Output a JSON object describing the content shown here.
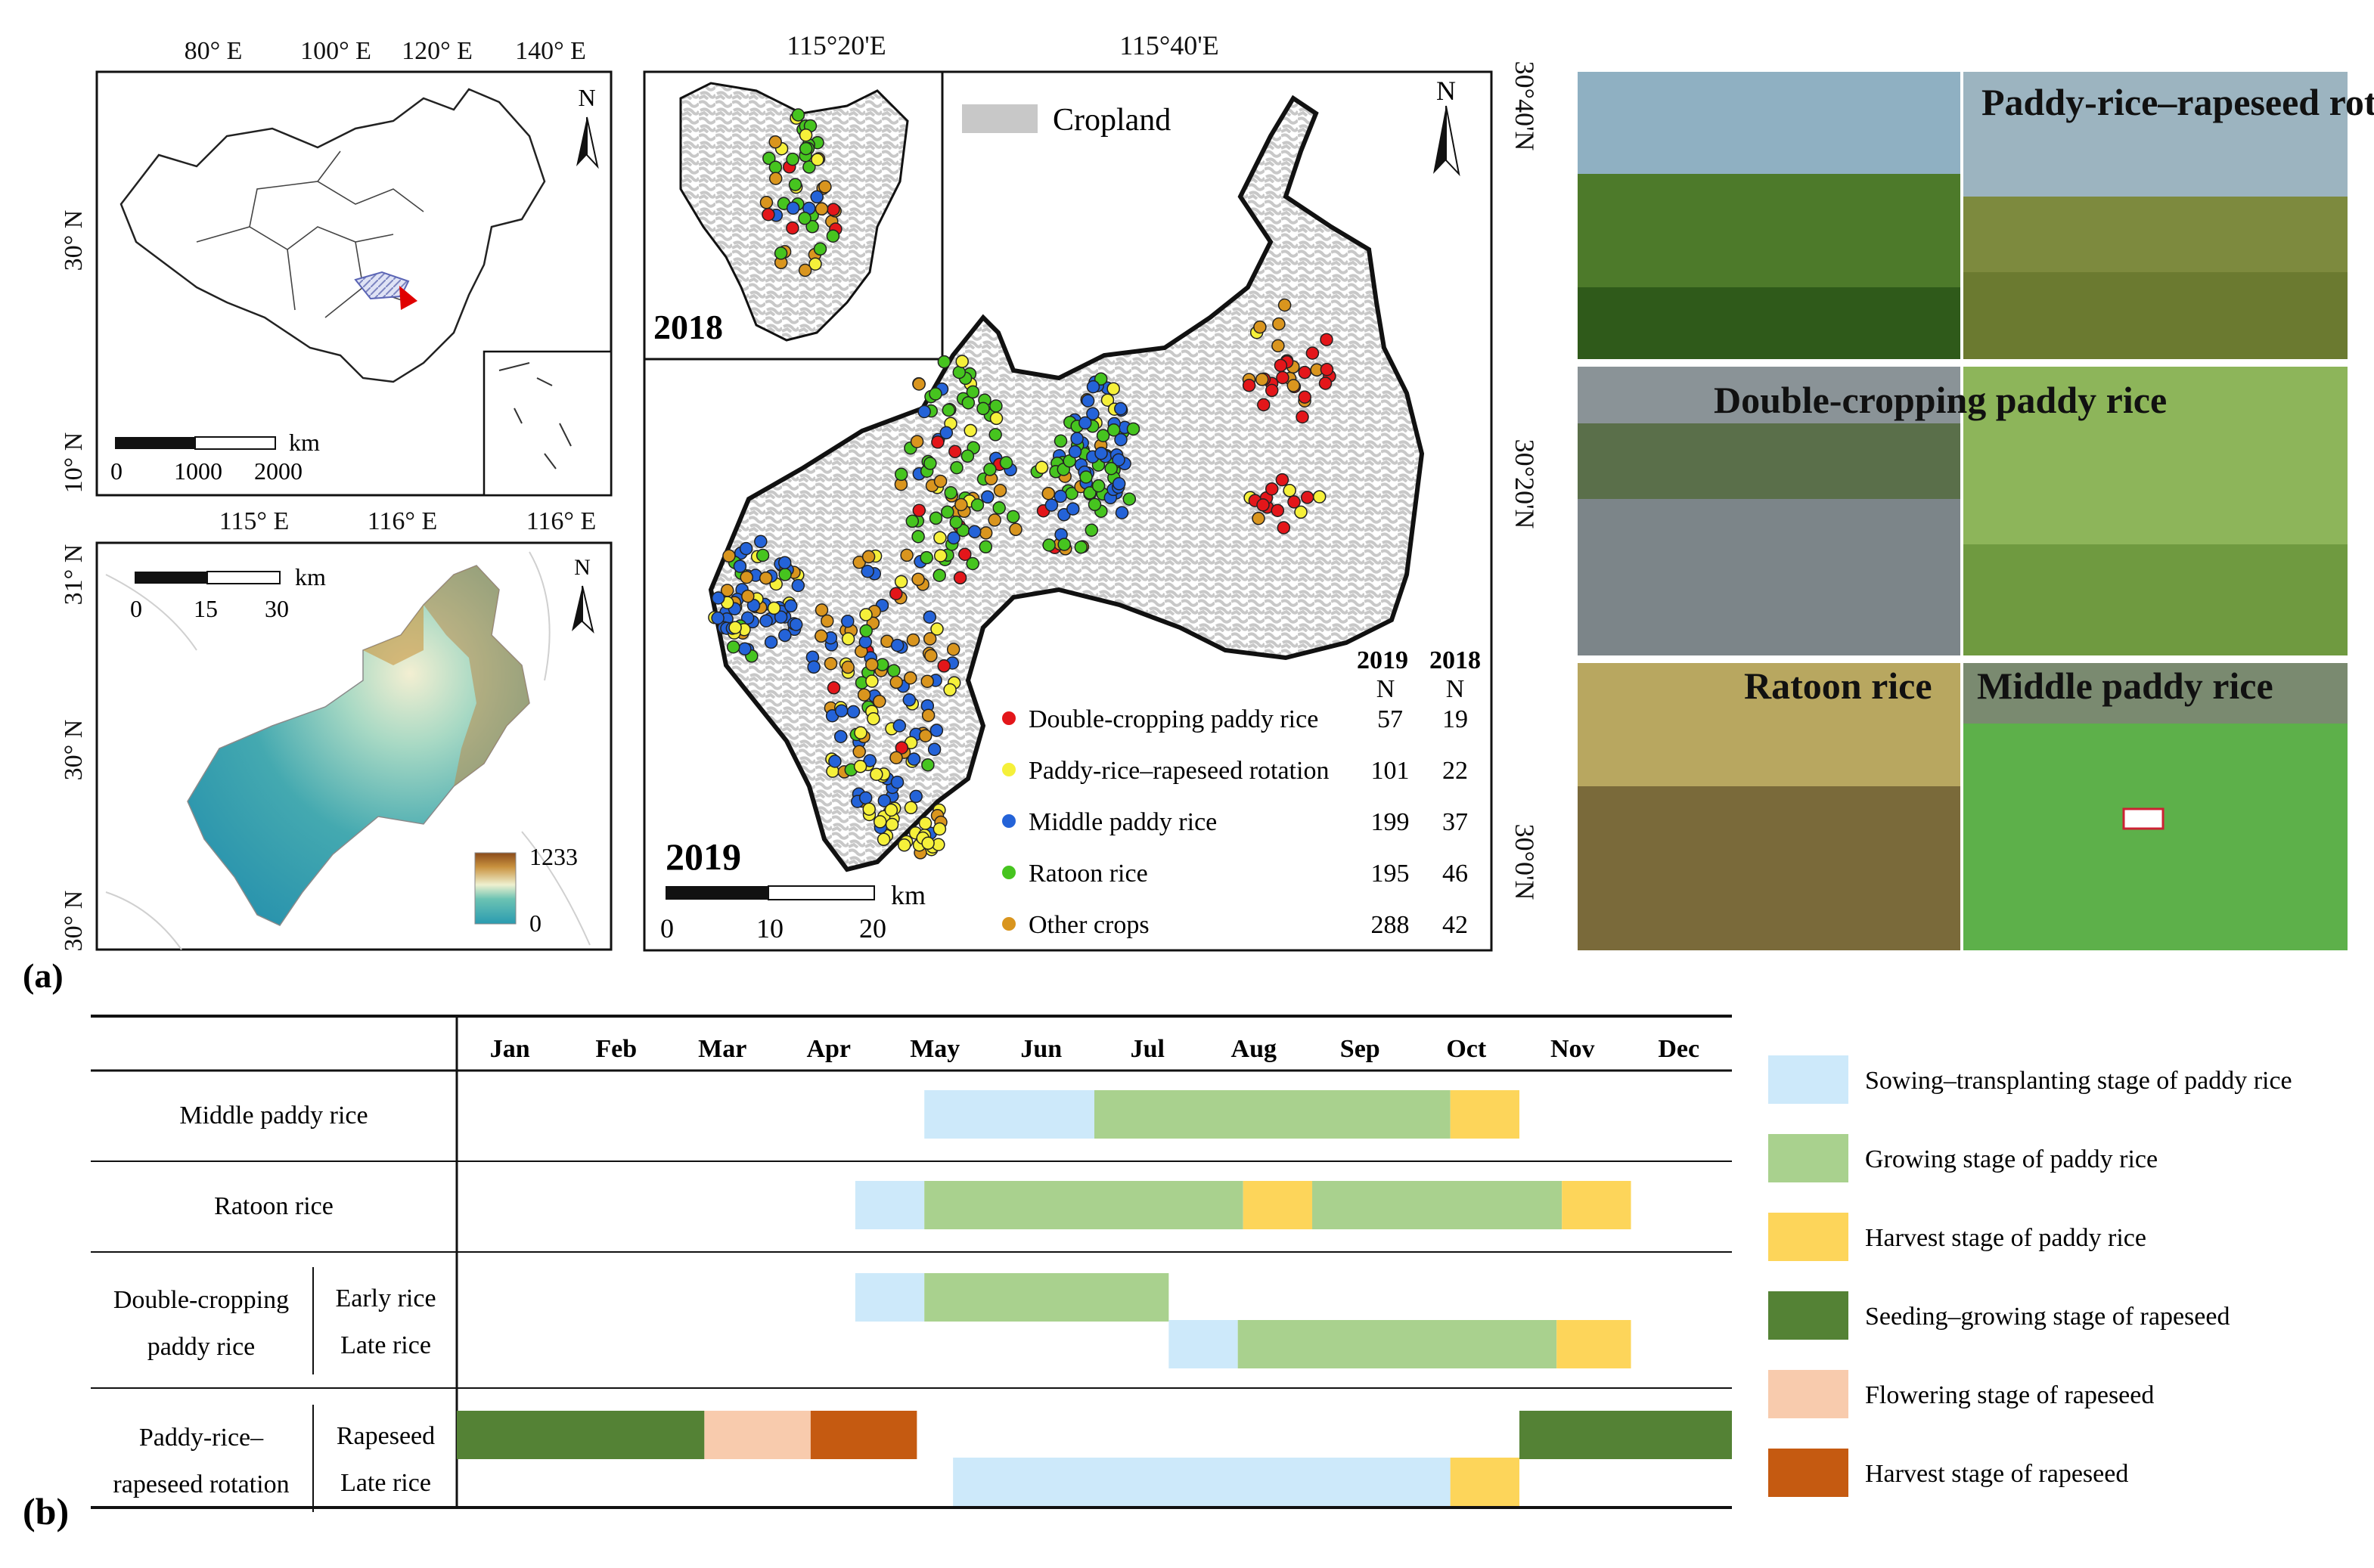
{
  "panel_labels": {
    "a": "(a)",
    "b": "(b)"
  },
  "china_map": {
    "lon_ticks": [
      "80° E",
      "100° E",
      "120° E",
      "140° E"
    ],
    "lat_ticks": [
      "30° N",
      "10° N"
    ],
    "north": "N",
    "scale_unit": "km",
    "scale_ticks": [
      "0",
      "1000",
      "2000"
    ]
  },
  "dem_map": {
    "lon_ticks": [
      "115° E",
      "116° E",
      "116° E"
    ],
    "lat_ticks": [
      "31° N",
      "30° N",
      "30° N"
    ],
    "north": "N",
    "scale_unit": "km",
    "scale_ticks": [
      "0",
      "15",
      "30"
    ],
    "legend_max": "1233",
    "legend_min": "0"
  },
  "study_map": {
    "lon_ticks": [
      "115°20'E",
      "115°40'E"
    ],
    "lat_ticks": [
      "30°40'N",
      "30°20'N",
      "30°0'N"
    ],
    "north": "N",
    "cropland_label": "Cropland",
    "inset_year": "2018",
    "main_year": "2019",
    "scale_unit": "km",
    "scale_ticks": [
      "0",
      "10",
      "20"
    ],
    "legend_header": {
      "y2019": "2019",
      "y2018": "2018",
      "n1": "N",
      "n2": "N"
    },
    "legend": [
      {
        "label": "Double-cropping paddy rice",
        "n2019": "57",
        "n2018": "19",
        "color": "#e3161a"
      },
      {
        "label": "Paddy-rice–rapeseed rotation",
        "n2019": "101",
        "n2018": "22",
        "color": "#f5f03a"
      },
      {
        "label": "Middle paddy rice",
        "n2019": "199",
        "n2018": "37",
        "color": "#2463d8"
      },
      {
        "label": "Ratoon rice",
        "n2019": "195",
        "n2018": "46",
        "color": "#46c41f"
      },
      {
        "label": "Other crops",
        "n2019": "288",
        "n2018": "42",
        "color": "#d9951e"
      }
    ]
  },
  "photos": {
    "row1": "Paddy-rice–rapeseed rotation",
    "row2": "Double-cropping paddy rice",
    "row3_left": "Ratoon rice",
    "row3_right": "Middle paddy rice"
  },
  "calendar": {
    "months": [
      "Jan",
      "Feb",
      "Mar",
      "Apr",
      "May",
      "Jun",
      "Jul",
      "Aug",
      "Sep",
      "Oct",
      "Nov",
      "Dec"
    ],
    "rows": [
      {
        "group": "Middle paddy rice",
        "sub": "",
        "bars": [
          {
            "stage": "sow",
            "start": 4.4,
            "end": 6.0
          },
          {
            "stage": "grow",
            "start": 6.0,
            "end": 9.35
          },
          {
            "stage": "harvest",
            "start": 9.35,
            "end": 10.0
          }
        ]
      },
      {
        "group": "Ratoon rice",
        "sub": "",
        "bars": [
          {
            "stage": "sow",
            "start": 3.75,
            "end": 4.4
          },
          {
            "stage": "grow",
            "start": 4.4,
            "end": 7.4
          },
          {
            "stage": "harvest",
            "start": 7.4,
            "end": 8.05
          },
          {
            "stage": "grow",
            "start": 8.05,
            "end": 10.4
          },
          {
            "stage": "harvest",
            "start": 10.4,
            "end": 11.05
          }
        ]
      },
      {
        "group": "Double-cropping paddy rice",
        "group_lines": [
          "Double-cropping",
          "paddy rice"
        ],
        "sub": "Early rice",
        "bars": [
          {
            "stage": "sow",
            "start": 3.75,
            "end": 4.4
          },
          {
            "stage": "grow",
            "start": 4.4,
            "end": 6.7
          }
        ]
      },
      {
        "group": "",
        "sub": "Late rice",
        "bars": [
          {
            "stage": "sow",
            "start": 6.7,
            "end": 7.35
          },
          {
            "stage": "grow",
            "start": 7.35,
            "end": 10.35
          },
          {
            "stage": "harvest",
            "start": 10.35,
            "end": 11.05
          }
        ]
      },
      {
        "group": "Paddy-rice–rapeseed rotation",
        "group_lines": [
          "Paddy-rice–",
          "rapeseed rotation"
        ],
        "sub": "Rapeseed",
        "bars": [
          {
            "stage": "rape_grow",
            "start": 0.0,
            "end": 2.33
          },
          {
            "stage": "rape_flower",
            "start": 2.33,
            "end": 3.33
          },
          {
            "stage": "rape_harvest",
            "start": 3.33,
            "end": 4.33
          },
          {
            "stage": "rape_grow",
            "start": 10.0,
            "end": 12.0
          }
        ]
      },
      {
        "group": "",
        "sub": "Late rice",
        "bars": [
          {
            "stage": "sow",
            "start": 4.67,
            "end": 9.35
          },
          {
            "stage": "harvest",
            "start": 9.35,
            "end": 10.0
          }
        ]
      }
    ],
    "legend": [
      {
        "stage": "sow",
        "label": "Sowing–transplanting stage of paddy rice",
        "color": "#cde9fa"
      },
      {
        "stage": "grow",
        "label": "Growing stage of paddy rice",
        "color": "#a9d18e"
      },
      {
        "stage": "harvest",
        "label": "Harvest stage of paddy rice",
        "color": "#fdd55a"
      },
      {
        "stage": "rape_grow",
        "label": "Seeding–growing stage of rapeseed",
        "color": "#548235"
      },
      {
        "stage": "rape_flower",
        "label": "Flowering stage of rapeseed",
        "color": "#f8cbad"
      },
      {
        "stage": "rape_harvest",
        "label": "Harvest stage of rapeseed",
        "color": "#c55a11"
      }
    ]
  }
}
